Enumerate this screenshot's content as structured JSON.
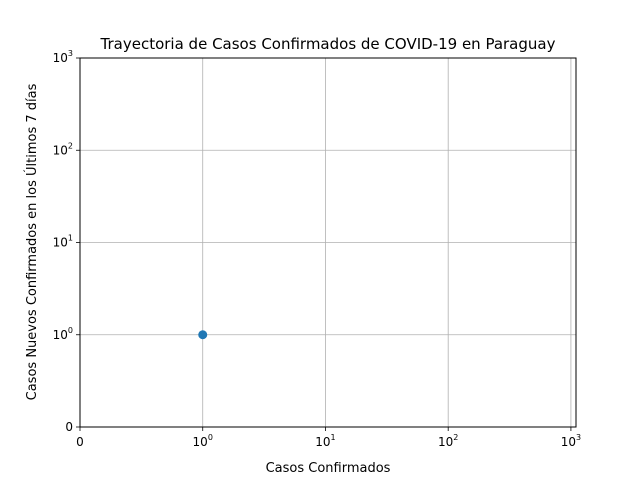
{
  "chart_data": {
    "type": "scatter",
    "title": "Trayectoria de Casos Confirmados de COVID-19 en Paraguay",
    "xlabel": "Casos Confirmados",
    "ylabel": "Casos Nuevos Confirmados en los Últimos 7 días",
    "xscale": "symlog",
    "yscale": "symlog",
    "xlim": [
      0,
      1100
    ],
    "ylim": [
      0,
      1000
    ],
    "grid": true,
    "x_ticks": [
      {
        "value": 0,
        "base": "0",
        "exp": ""
      },
      {
        "value": 1,
        "base": "10",
        "exp": "0"
      },
      {
        "value": 10,
        "base": "10",
        "exp": "1"
      },
      {
        "value": 100,
        "base": "10",
        "exp": "2"
      },
      {
        "value": 1000,
        "base": "10",
        "exp": "3"
      }
    ],
    "y_ticks": [
      {
        "value": 0,
        "base": "0",
        "exp": ""
      },
      {
        "value": 1,
        "base": "10",
        "exp": "0"
      },
      {
        "value": 10,
        "base": "10",
        "exp": "1"
      },
      {
        "value": 100,
        "base": "10",
        "exp": "2"
      },
      {
        "value": 1000,
        "base": "10",
        "exp": "3"
      }
    ],
    "series": [
      {
        "x": [
          1
        ],
        "y": [
          1
        ],
        "color": "#1f77b4"
      }
    ]
  }
}
